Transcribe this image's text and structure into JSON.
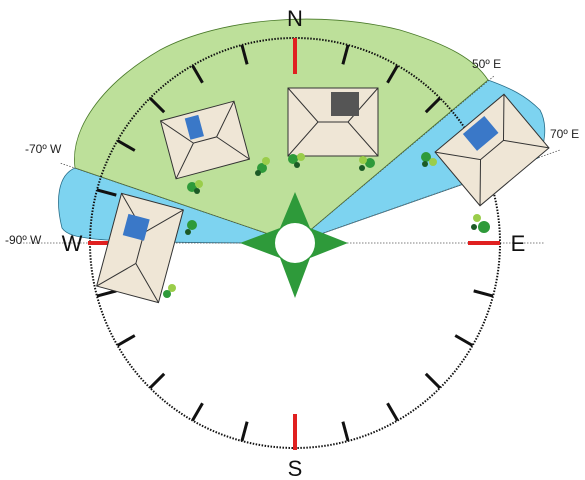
{
  "compass": {
    "north": "N",
    "south": "S",
    "east": "E",
    "west": "W"
  },
  "angles": {
    "a50e": "50º E",
    "a70e": "70º E",
    "am70w": "-70º W",
    "am90w": "-90º W"
  }
}
